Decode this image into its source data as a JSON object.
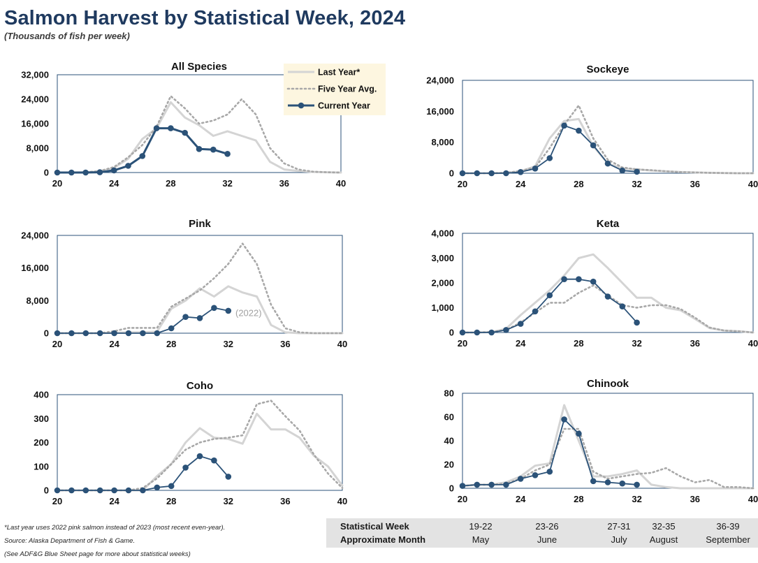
{
  "header": {
    "title": "Salmon Harvest by Statistical Week, 2024",
    "subtitle": "(Thousands of fish per week)"
  },
  "legend": {
    "items": [
      {
        "label": "Last Year*",
        "style": "solid-light",
        "color": "#d4d4d4"
      },
      {
        "label": "Five Year Avg.",
        "style": "dotted",
        "color": "#a8a8a8"
      },
      {
        "label": "Current Year",
        "style": "marker-line",
        "color": "#2b5278"
      }
    ],
    "background": "#fdf6e0",
    "placement": "top-right of All Species chart"
  },
  "colors": {
    "current": "#2b5278",
    "last_year": "#d4d4d4",
    "five_year": "#a8a8a8",
    "frame": "#2b5278",
    "title": "#1f3a5f"
  },
  "chart_data": [
    {
      "type": "line",
      "title": "All Species",
      "xlabel": "",
      "ylabel": "",
      "xlim": [
        20,
        40
      ],
      "xticks": [
        "20",
        "24",
        "28",
        "32",
        "36",
        "40"
      ],
      "ylim": [
        0,
        32000
      ],
      "yticks": [
        "0",
        "8,000",
        "16,000",
        "24,000",
        "32,000"
      ],
      "x": [
        20,
        21,
        22,
        23,
        24,
        25,
        26,
        27,
        28,
        29,
        30,
        31,
        32,
        33,
        34,
        35,
        36,
        37,
        38,
        39,
        40
      ],
      "series": [
        {
          "name": "Last Year*",
          "values": [
            0,
            0,
            100,
            400,
            1500,
            4500,
            11000,
            14500,
            23000,
            18000,
            15500,
            12000,
            13500,
            12000,
            10500,
            3500,
            1000,
            500,
            200,
            100,
            0
          ]
        },
        {
          "name": "Five Year Avg.",
          "values": [
            0,
            0,
            100,
            500,
            1800,
            5000,
            9000,
            15000,
            25000,
            21000,
            16000,
            17000,
            19000,
            24000,
            19000,
            8000,
            3000,
            1000,
            300,
            100,
            0
          ]
        },
        {
          "name": "Current Year",
          "x": [
            20,
            21,
            22,
            23,
            24,
            25,
            26,
            27,
            28,
            29,
            30,
            31,
            32
          ],
          "values": [
            0,
            0,
            0,
            100,
            700,
            2200,
            5400,
            14500,
            14500,
            13000,
            7700,
            7500,
            6100
          ]
        }
      ],
      "annotations": []
    },
    {
      "type": "line",
      "title": "Sockeye",
      "xlabel": "",
      "ylabel": "",
      "xlim": [
        20,
        40
      ],
      "xticks": [
        "20",
        "24",
        "28",
        "32",
        "36",
        "40"
      ],
      "ylim": [
        0,
        24000
      ],
      "yticks": [
        "0",
        "8,000",
        "16,000",
        "24,000"
      ],
      "x": [
        20,
        21,
        22,
        23,
        24,
        25,
        26,
        27,
        28,
        29,
        30,
        31,
        32,
        33,
        34,
        35,
        36,
        37,
        38,
        39,
        40
      ],
      "series": [
        {
          "name": "Last Year*",
          "values": [
            0,
            0,
            0,
            100,
            500,
            1800,
            9000,
            13500,
            14000,
            7000,
            2500,
            1200,
            1000,
            700,
            500,
            300,
            200,
            100,
            50,
            0,
            0
          ]
        },
        {
          "name": "Five Year Avg.",
          "values": [
            0,
            0,
            0,
            100,
            600,
            1500,
            6500,
            12500,
            17500,
            9000,
            3500,
            1500,
            1000,
            800,
            500,
            300,
            200,
            100,
            50,
            0,
            0
          ]
        },
        {
          "name": "Current Year",
          "x": [
            20,
            21,
            22,
            23,
            24,
            25,
            26,
            27,
            28,
            29,
            30,
            31,
            32
          ],
          "values": [
            0,
            0,
            0,
            0,
            300,
            1200,
            3900,
            12300,
            11000,
            7200,
            2500,
            700,
            400
          ]
        }
      ],
      "annotations": []
    },
    {
      "type": "line",
      "title": "Pink",
      "xlabel": "",
      "ylabel": "",
      "xlim": [
        20,
        40
      ],
      "xticks": [
        "20",
        "24",
        "28",
        "32",
        "36",
        "40"
      ],
      "ylim": [
        0,
        24000
      ],
      "yticks": [
        "0",
        "8,000",
        "16,000",
        "24,000"
      ],
      "x": [
        20,
        21,
        22,
        23,
        24,
        25,
        26,
        27,
        28,
        29,
        30,
        31,
        32,
        33,
        34,
        35,
        36,
        37,
        38,
        39,
        40
      ],
      "series": [
        {
          "name": "Last Year*",
          "values": [
            0,
            0,
            0,
            0,
            100,
            200,
            200,
            400,
            6000,
            8000,
            11000,
            9000,
            11500,
            10000,
            9000,
            2000,
            200,
            0,
            0,
            0,
            0
          ]
        },
        {
          "name": "Five Year Avg.",
          "values": [
            0,
            0,
            0,
            0,
            500,
            1300,
            1300,
            1300,
            6500,
            8500,
            10500,
            13500,
            17000,
            22000,
            17000,
            7000,
            1200,
            200,
            0,
            0,
            0
          ]
        },
        {
          "name": "Current Year",
          "x": [
            20,
            21,
            22,
            23,
            24,
            25,
            26,
            27,
            28,
            29,
            30,
            31,
            32
          ],
          "values": [
            0,
            0,
            0,
            0,
            0,
            0,
            0,
            0,
            1200,
            4000,
            3700,
            6200,
            5500
          ]
        }
      ],
      "annotations": [
        {
          "text": "(2022)",
          "x": 32.5,
          "y": 4200
        }
      ]
    },
    {
      "type": "line",
      "title": "Keta",
      "xlabel": "",
      "ylabel": "",
      "xlim": [
        20,
        40
      ],
      "xticks": [
        "20",
        "24",
        "28",
        "32",
        "36",
        "40"
      ],
      "ylim": [
        0,
        4000
      ],
      "yticks": [
        "0",
        "1,000",
        "2,000",
        "3,000",
        "4,000"
      ],
      "x": [
        20,
        21,
        22,
        23,
        24,
        25,
        26,
        27,
        28,
        29,
        30,
        31,
        32,
        33,
        34,
        35,
        36,
        37,
        38,
        39,
        40
      ],
      "series": [
        {
          "name": "Last Year*",
          "values": [
            0,
            0,
            20,
            150,
            700,
            1200,
            1700,
            2300,
            3000,
            3150,
            2600,
            2000,
            1400,
            1400,
            1000,
            900,
            550,
            180,
            80,
            50,
            0
          ]
        },
        {
          "name": "Five Year Avg.",
          "values": [
            0,
            0,
            20,
            100,
            400,
            800,
            1200,
            1200,
            1600,
            1900,
            1500,
            1100,
            1000,
            1100,
            1100,
            950,
            600,
            200,
            80,
            50,
            0
          ]
        },
        {
          "name": "Current Year",
          "x": [
            20,
            21,
            22,
            23,
            24,
            25,
            26,
            27,
            28,
            29,
            30,
            31,
            32
          ],
          "values": [
            0,
            0,
            0,
            100,
            350,
            850,
            1500,
            2150,
            2150,
            2050,
            1450,
            1050,
            400
          ]
        }
      ],
      "annotations": []
    },
    {
      "type": "line",
      "title": "Coho",
      "xlabel": "",
      "ylabel": "",
      "xlim": [
        20,
        40
      ],
      "xticks": [
        "20",
        "24",
        "28",
        "32",
        "36",
        "40"
      ],
      "ylim": [
        0,
        400
      ],
      "yticks": [
        "0",
        "100",
        "200",
        "300",
        "400"
      ],
      "x": [
        20,
        21,
        22,
        23,
        24,
        25,
        26,
        27,
        28,
        29,
        30,
        31,
        32,
        33,
        34,
        35,
        36,
        37,
        38,
        39,
        40
      ],
      "series": [
        {
          "name": "Last Year*",
          "values": [
            0,
            0,
            0,
            0,
            0,
            0,
            0,
            60,
            110,
            200,
            260,
            220,
            215,
            195,
            320,
            255,
            255,
            220,
            145,
            100,
            20
          ]
        },
        {
          "name": "Five Year Avg.",
          "values": [
            0,
            0,
            0,
            0,
            0,
            0,
            10,
            50,
            110,
            170,
            200,
            215,
            220,
            230,
            360,
            375,
            310,
            250,
            150,
            70,
            10
          ]
        },
        {
          "name": "Current Year",
          "x": [
            20,
            21,
            22,
            23,
            24,
            25,
            26,
            27,
            28,
            29,
            30,
            31,
            32
          ],
          "values": [
            0,
            0,
            0,
            0,
            0,
            0,
            0,
            12,
            18,
            95,
            143,
            125,
            57
          ]
        }
      ],
      "annotations": []
    },
    {
      "type": "line",
      "title": "Chinook",
      "xlabel": "",
      "ylabel": "",
      "xlim": [
        20,
        40
      ],
      "xticks": [
        "20",
        "24",
        "28",
        "32",
        "36",
        "40"
      ],
      "ylim": [
        0,
        80
      ],
      "yticks": [
        "0",
        "20",
        "40",
        "60",
        "80"
      ],
      "x": [
        20,
        21,
        22,
        23,
        24,
        25,
        26,
        27,
        28,
        29,
        30,
        31,
        32,
        33,
        34,
        35,
        36,
        37,
        38,
        39,
        40
      ],
      "series": [
        {
          "name": "Last Year*",
          "values": [
            2,
            3,
            3,
            5,
            10,
            19,
            21,
            70,
            40,
            10,
            10,
            12,
            15,
            3,
            1,
            0,
            0,
            0,
            0,
            0,
            0
          ]
        },
        {
          "name": "Five Year Avg.",
          "values": [
            2,
            3,
            3,
            4,
            8,
            15,
            20,
            50,
            50,
            14,
            8,
            10,
            12,
            13,
            17,
            10,
            5,
            7,
            1,
            1,
            0
          ]
        },
        {
          "name": "Current Year",
          "x": [
            20,
            21,
            22,
            23,
            24,
            25,
            26,
            27,
            28,
            29,
            30,
            31,
            32
          ],
          "values": [
            2,
            3,
            3,
            3,
            8,
            11,
            14,
            58,
            46,
            6,
            5,
            4,
            3
          ]
        }
      ],
      "annotations": []
    }
  ],
  "footnotes": {
    "note": "*Last year uses 2022 pink salmon instead of 2023 (most recent even-year).",
    "source": "Source: Alaska Department of Fish & Game.",
    "see": "(See ADF&G Blue Sheet page for more about statistical weeks)"
  },
  "week_table": {
    "row1_label": "Statistical Week",
    "row2_label": "Approximate Month",
    "columns": [
      {
        "week": "19-22",
        "month": "May"
      },
      {
        "week": "23-26",
        "month": "June"
      },
      {
        "week": "27-31",
        "month": "July"
      },
      {
        "week": "32-35",
        "month": "August"
      },
      {
        "week": "36-39",
        "month": "September"
      }
    ]
  }
}
